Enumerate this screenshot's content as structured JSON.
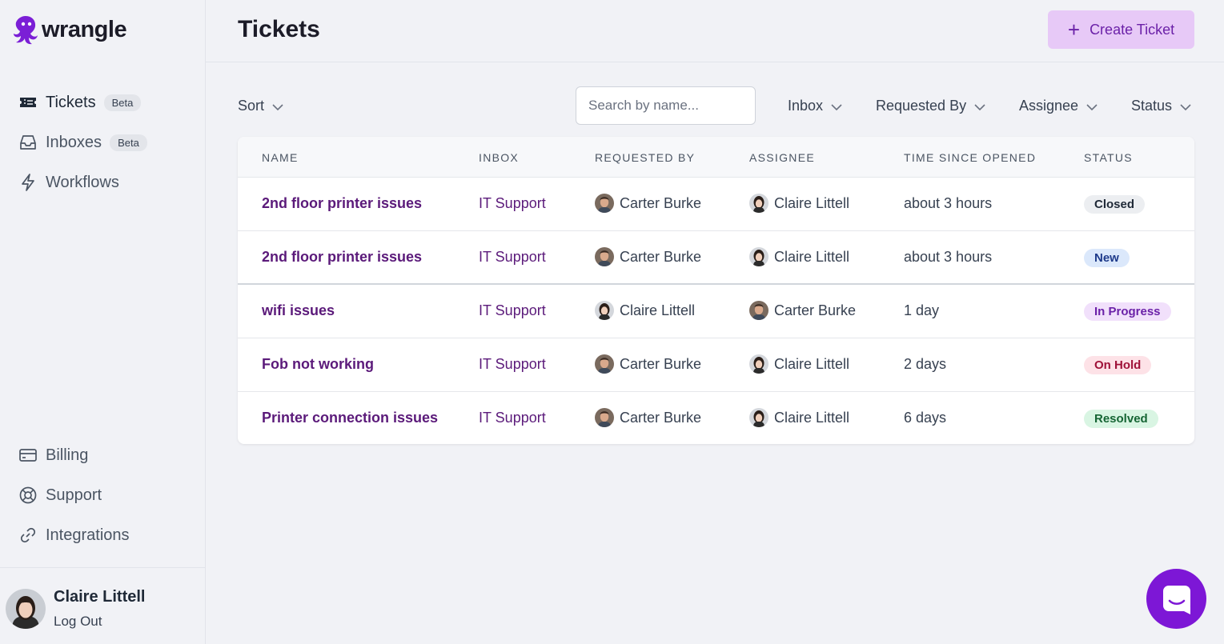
{
  "brand": {
    "name": "wrangle",
    "color": "#7b1fd6"
  },
  "nav": {
    "items": [
      {
        "label": "Tickets",
        "badge": "Beta",
        "icon": "ticket-icon",
        "active": true
      },
      {
        "label": "Inboxes",
        "badge": "Beta",
        "icon": "inbox-icon"
      },
      {
        "label": "Workflows",
        "icon": "lightning-icon"
      }
    ],
    "bottom_items": [
      {
        "label": "Billing",
        "icon": "credit-card-icon"
      },
      {
        "label": "Support",
        "icon": "lifebuoy-icon"
      },
      {
        "label": "Integrations",
        "icon": "link-icon"
      }
    ]
  },
  "user": {
    "name": "Claire Littell",
    "logout_label": "Log Out"
  },
  "header": {
    "title": "Tickets",
    "create_label": "Create Ticket"
  },
  "filters": {
    "sort_label": "Sort",
    "search_placeholder": "Search by name...",
    "inbox_label": "Inbox",
    "requested_by_label": "Requested By",
    "assignee_label": "Assignee",
    "status_label": "Status"
  },
  "table": {
    "columns": [
      "NAME",
      "INBOX",
      "REQUESTED BY",
      "ASSIGNEE",
      "TIME SINCE OPENED",
      "STATUS"
    ],
    "rows": [
      {
        "name": "2nd floor printer issues",
        "inbox": "IT Support",
        "requested_by": "Carter Burke",
        "assignee": "Claire Littell",
        "time": "about 3 hours",
        "status": "Closed"
      },
      {
        "name": "2nd floor printer issues",
        "inbox": "IT Support",
        "requested_by": "Carter Burke",
        "assignee": "Claire Littell",
        "time": "about 3 hours",
        "status": "New"
      },
      {
        "name": "wifi issues",
        "inbox": "IT Support",
        "requested_by": "Claire Littell",
        "assignee": "Carter Burke",
        "time": "1 day",
        "status": "In Progress"
      },
      {
        "name": "Fob not working",
        "inbox": "IT Support",
        "requested_by": "Carter Burke",
        "assignee": "Claire Littell",
        "time": "2 days",
        "status": "On Hold"
      },
      {
        "name": "Printer connection issues",
        "inbox": "IT Support",
        "requested_by": "Carter Burke",
        "assignee": "Claire Littell",
        "time": "6 days",
        "status": "Resolved"
      }
    ]
  },
  "status_colors": {
    "Closed": {
      "bg": "#eceef1",
      "fg": "#1f2937"
    },
    "New": {
      "bg": "#dbe8fb",
      "fg": "#1e3a8a"
    },
    "In Progress": {
      "bg": "#f1e0fb",
      "fg": "#6b21a8"
    },
    "On Hold": {
      "bg": "#fde2e7",
      "fg": "#9f1239"
    },
    "Resolved": {
      "bg": "#d9f5e3",
      "fg": "#166534"
    }
  },
  "chat": {
    "icon": "chat-icon",
    "color": "#7d17d6"
  }
}
